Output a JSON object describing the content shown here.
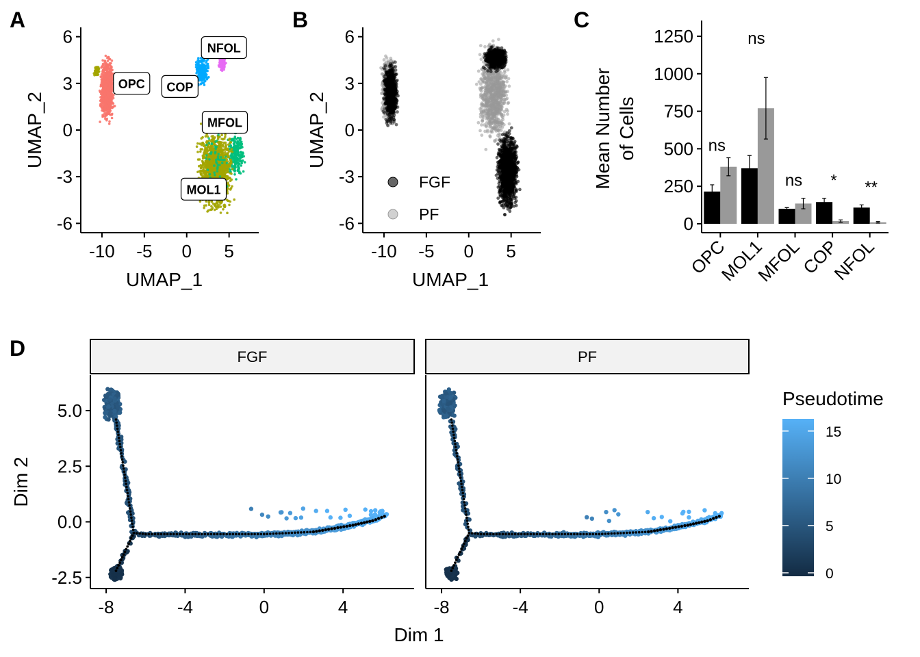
{
  "panels": {
    "a": "A",
    "b": "B",
    "c": "C",
    "d": "D"
  },
  "chart_data": [
    {
      "type": "scatter",
      "panel": "A",
      "xlabel": "UMAP_1",
      "ylabel": "UMAP_2",
      "xticks": [
        "-10",
        "-5",
        "0",
        "5"
      ],
      "yticks": [
        "6",
        "3",
        "0",
        "-3",
        "-6"
      ],
      "xlim": [
        -12.5,
        8.5
      ],
      "ylim": [
        -6.6,
        6.6
      ],
      "clusters": [
        {
          "label": "OPC",
          "label_x": -6.5,
          "label_y": 3.0,
          "color": "#F8766D",
          "region": {
            "x": [
              -10.9,
              -8.0
            ],
            "y": [
              -0.5,
              5.8
            ]
          }
        },
        {
          "label": "COP",
          "label_x": -0.8,
          "label_y": 2.8,
          "color": "#00A9FF",
          "region": {
            "x": [
              0.5,
              4.3
            ],
            "y": [
              1.8,
              5.5
            ]
          }
        },
        {
          "label": "NFOL",
          "label_x": 4.4,
          "label_y": 5.3,
          "color": "#E76BF3",
          "region": {
            "x": [
              3.0,
              5.2
            ],
            "y": [
              3.8,
              4.8
            ]
          }
        },
        {
          "label": "MFOL",
          "label_x": 4.5,
          "label_y": 0.5,
          "color": "#00BF7D",
          "region": {
            "x": [
              2.0,
              7.5
            ],
            "y": [
              -3.0,
              1.0
            ]
          }
        },
        {
          "label": "MOL1",
          "label_x": 2.0,
          "label_y": -3.8,
          "color": "#A3A500",
          "region": {
            "x": [
              0.3,
              6.8
            ],
            "y": [
              -6.2,
              0.5
            ]
          }
        }
      ]
    },
    {
      "type": "scatter",
      "panel": "B",
      "xlabel": "UMAP_1",
      "ylabel": "UMAP_2",
      "xticks": [
        "-10",
        "-5",
        "0",
        "5"
      ],
      "yticks": [
        "6",
        "3",
        "0",
        "-3",
        "-6"
      ],
      "xlim": [
        -12.5,
        8.5
      ],
      "ylim": [
        -6.6,
        6.6
      ],
      "legend": [
        {
          "name": "FGF",
          "color": "#000000"
        },
        {
          "name": "PF",
          "color": "#999999"
        }
      ]
    },
    {
      "type": "bar",
      "panel": "C",
      "ylabel_line1": "Mean Number",
      "ylabel_line2": "of Cells",
      "categories": [
        "OPC",
        "MOL1",
        "MFOL",
        "COP",
        "NFOL"
      ],
      "ylim": [
        0,
        1300
      ],
      "yticks": [
        "0",
        "250",
        "500",
        "750",
        "1000",
        "1250"
      ],
      "series": [
        {
          "color": "#000000",
          "values": [
            215,
            370,
            100,
            145,
            108
          ],
          "errors": [
            45,
            85,
            8,
            25,
            18
          ]
        },
        {
          "color": "#999999",
          "values": [
            380,
            770,
            135,
            18,
            10
          ],
          "errors": [
            60,
            205,
            35,
            8,
            5
          ]
        }
      ],
      "significance": [
        "ns",
        "ns",
        "ns",
        "*",
        "**"
      ]
    },
    {
      "type": "scatter",
      "panel": "D",
      "facets": [
        "FGF",
        "PF"
      ],
      "xlabel": "Dim 1",
      "ylabel": "Dim 2",
      "xticks": [
        "-8",
        "-4",
        "0",
        "4"
      ],
      "yticks": [
        "5.0",
        "2.5",
        "0.0",
        "-2.5"
      ],
      "xlim": [
        -8.8,
        7.6
      ],
      "ylim": [
        -3.0,
        6.6
      ],
      "colorbar": {
        "title": "Pseudotime",
        "range": [
          0,
          16
        ],
        "ticks": [
          "15",
          "10",
          "5",
          "0"
        ],
        "low_color": "#132B43",
        "high_color": "#56B1F7"
      },
      "trajectory": [
        [
          -7.5,
          4.6
        ],
        [
          -6.6,
          -0.5
        ],
        [
          -7.5,
          -2.2
        ],
        [
          -6.6,
          -0.5
        ],
        [
          -6.0,
          -0.55
        ],
        [
          0.0,
          -0.55
        ],
        [
          2.5,
          -0.45
        ],
        [
          4.5,
          -0.15
        ],
        [
          5.5,
          0.05
        ],
        [
          6.1,
          0.25
        ]
      ]
    }
  ]
}
